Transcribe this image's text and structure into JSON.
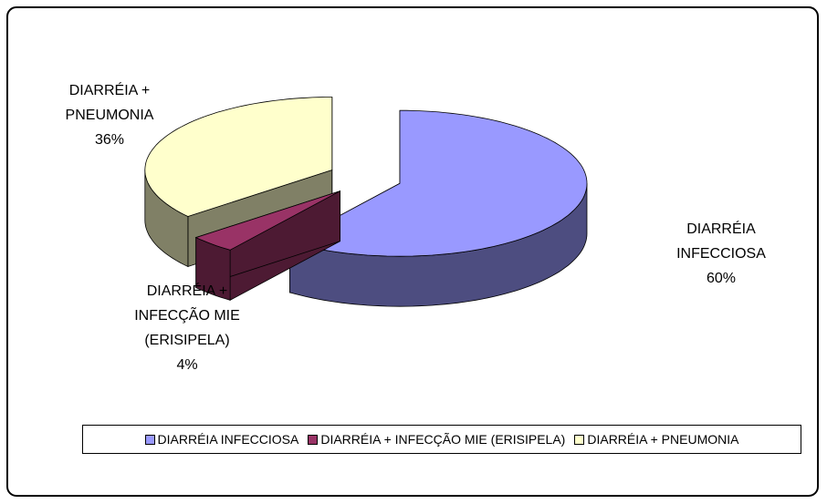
{
  "chart_data": {
    "type": "pie3d",
    "categories": [
      "DIARRÉIA INFECCIOSA",
      "DIARRÉIA + INFECÇÃO MIE (ERISIPELA)",
      "DIARRÉIA + PNEUMONIA"
    ],
    "values": [
      60,
      4,
      36
    ],
    "value_labels": [
      "60%",
      "4%",
      "36%"
    ],
    "colors": [
      "#9999ff",
      "#993366",
      "#ffffcc"
    ],
    "legend": "bottom"
  }
}
